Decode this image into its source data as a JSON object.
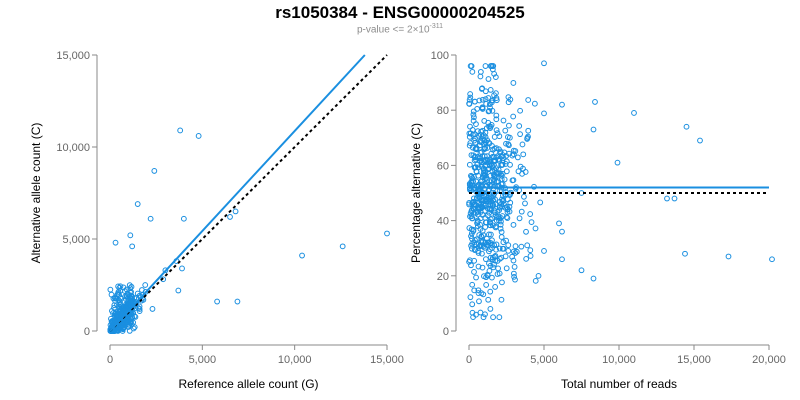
{
  "title": "rs1050384 - ENSG00000204525",
  "subtitle": {
    "text": "p-value <= 2×10",
    "exponent": "-311"
  },
  "colors": {
    "points": "#1a8fe0",
    "fit": "#1a8fe0",
    "reference": "#000000",
    "axis": "#888888",
    "tick_text": "#666666"
  },
  "chart_data": [
    {
      "type": "scatter",
      "xlabel": "Reference allele count (G)",
      "ylabel": "Alternative allele count (C)",
      "xlim": [
        0,
        15000
      ],
      "ylim": [
        0,
        15000
      ],
      "xticks": [
        0,
        5000,
        10000,
        15000
      ],
      "xtick_labels": [
        "0",
        "5,000",
        "10,000",
        "15,000"
      ],
      "yticks": [
        0,
        5000,
        10000,
        15000
      ],
      "ytick_labels": [
        "0",
        "5,000",
        "10,000",
        "15,000"
      ],
      "highlighted_points": [
        {
          "x": 3800,
          "y": 10900
        },
        {
          "x": 4800,
          "y": 10600
        },
        {
          "x": 2400,
          "y": 8700
        },
        {
          "x": 1500,
          "y": 6900
        },
        {
          "x": 4000,
          "y": 6100
        },
        {
          "x": 2200,
          "y": 6100
        },
        {
          "x": 6800,
          "y": 6500
        },
        {
          "x": 6500,
          "y": 6200
        },
        {
          "x": 15000,
          "y": 5300
        },
        {
          "x": 12600,
          "y": 4600
        },
        {
          "x": 10400,
          "y": 4100
        },
        {
          "x": 5800,
          "y": 1600
        },
        {
          "x": 6900,
          "y": 1600
        },
        {
          "x": 3600,
          "y": 3800
        },
        {
          "x": 3900,
          "y": 3400
        },
        {
          "x": 3000,
          "y": 3300
        },
        {
          "x": 1100,
          "y": 5200
        },
        {
          "x": 1200,
          "y": 4600
        },
        {
          "x": 300,
          "y": 4800
        },
        {
          "x": 3700,
          "y": 2200
        },
        {
          "x": 2300,
          "y": 1200
        }
      ],
      "cluster": {
        "x_range": [
          0,
          3000
        ],
        "y_range": [
          0,
          3000
        ],
        "approx_points": 420
      },
      "fit_line": {
        "x": [
          0,
          13800
        ],
        "y": [
          0,
          15000
        ]
      },
      "reference_line": {
        "x": [
          0,
          15000
        ],
        "y": [
          0,
          15000
        ]
      }
    },
    {
      "type": "scatter",
      "xlabel": "Total number of reads",
      "ylabel": "Percentage alternative (C)",
      "xlim": [
        0,
        20000
      ],
      "ylim": [
        0,
        100
      ],
      "xticks": [
        0,
        5000,
        10000,
        15000,
        20000
      ],
      "xtick_labels": [
        "0",
        "5,000",
        "10,000",
        "15,000",
        "20,000"
      ],
      "yticks": [
        0,
        20,
        40,
        60,
        80,
        100
      ],
      "ytick_labels": [
        "0",
        "20",
        "40",
        "60",
        "80",
        "100"
      ],
      "highlighted_points": [
        {
          "x": 5000,
          "y": 97
        },
        {
          "x": 8400,
          "y": 83
        },
        {
          "x": 8300,
          "y": 73
        },
        {
          "x": 11000,
          "y": 79
        },
        {
          "x": 14500,
          "y": 74
        },
        {
          "x": 15400,
          "y": 69
        },
        {
          "x": 9900,
          "y": 61
        },
        {
          "x": 13200,
          "y": 48
        },
        {
          "x": 13700,
          "y": 48
        },
        {
          "x": 14400,
          "y": 28
        },
        {
          "x": 17300,
          "y": 27
        },
        {
          "x": 20200,
          "y": 26
        },
        {
          "x": 7500,
          "y": 22
        },
        {
          "x": 8300,
          "y": 19
        },
        {
          "x": 6000,
          "y": 39
        },
        {
          "x": 6200,
          "y": 36
        },
        {
          "x": 6200,
          "y": 26
        },
        {
          "x": 7500,
          "y": 50
        },
        {
          "x": 6200,
          "y": 82
        },
        {
          "x": 5000,
          "y": 29
        }
      ],
      "cluster": {
        "x_range": [
          0,
          5000
        ],
        "y_range": [
          5,
          96
        ],
        "approx_points": 600
      },
      "fit_line": {
        "x": [
          0,
          20000
        ],
        "y": [
          52,
          52
        ]
      },
      "reference_line": {
        "x": [
          0,
          20000
        ],
        "y": [
          50,
          50
        ]
      }
    }
  ]
}
